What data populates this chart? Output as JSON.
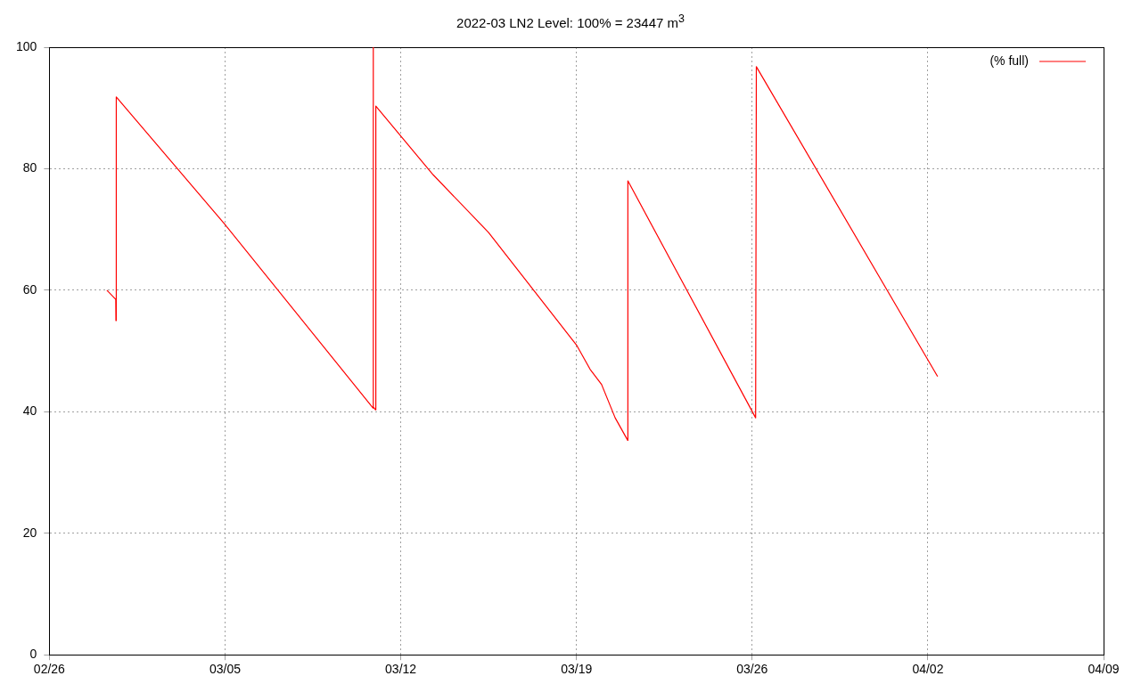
{
  "chart_data": {
    "type": "line",
    "title": "2022-03 LN2 Level: 100% = 23447 m$^{3}$",
    "xlim": [
      "2022-02-26",
      "2022-04-09"
    ],
    "xticks": [
      {
        "value": "2022-02-26",
        "label": "02/26"
      },
      {
        "value": "2022-03-05",
        "label": "03/05"
      },
      {
        "value": "2022-03-12",
        "label": "03/12"
      },
      {
        "value": "2022-03-19",
        "label": "03/19"
      },
      {
        "value": "2022-03-26",
        "label": "03/26"
      },
      {
        "value": "2022-04-02",
        "label": "04/02"
      },
      {
        "value": "2022-04-09",
        "label": "04/09"
      }
    ],
    "ylim": [
      0,
      100
    ],
    "yticks": [
      0,
      20,
      40,
      60,
      80,
      100
    ],
    "grid": true,
    "legend": "top right",
    "marker": "none",
    "line_style": "solid",
    "series": [
      {
        "name": "(% full)",
        "color": "#ff0000",
        "x": [
          "2022-02-28T07:00",
          "2022-02-28T15:30",
          "2022-02-28T15:40",
          "2022-02-28T16:00",
          "2022-03-05T00:00",
          "2022-03-10T21:30",
          "2022-03-10T21:40",
          "2022-03-10T21:50",
          "2022-03-11T00:00",
          "2022-03-11T00:10",
          "2022-03-13T07:00",
          "2022-03-15T12:00",
          "2022-03-19T00:00",
          "2022-03-19T13:00",
          "2022-03-20T00:00",
          "2022-03-20T13:00",
          "2022-03-21T01:00",
          "2022-03-21T01:10",
          "2022-03-26T03:20",
          "2022-03-26T04:00",
          "2022-04-02T09:20"
        ],
        "values": [
          60,
          58.5,
          55,
          91.8,
          70.8,
          40.6,
          100,
          40.8,
          40.3,
          90.3,
          79,
          69.5,
          51,
          47,
          44.5,
          39,
          35.3,
          78,
          39,
          96.8,
          45.8
        ]
      }
    ]
  }
}
